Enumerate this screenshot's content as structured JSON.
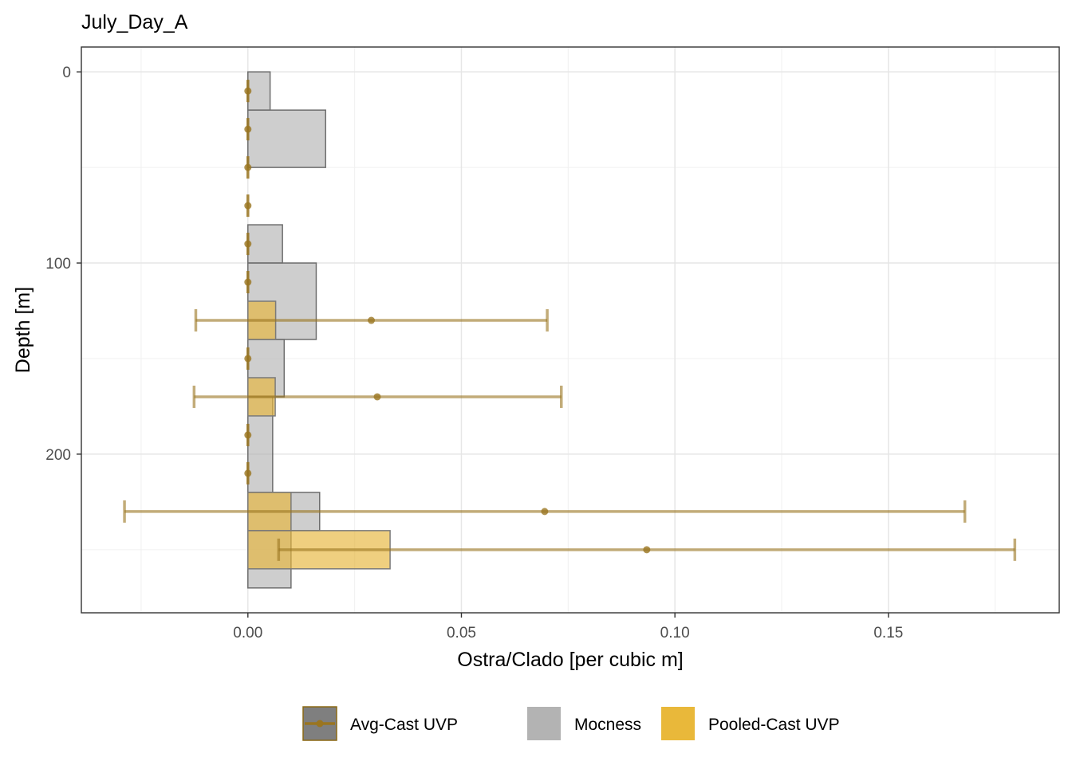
{
  "chart_data": {
    "type": "bar",
    "title": "July_Day_A",
    "xlabel": "Ostra/Clado [per cubic m]",
    "ylabel": "Depth [m]",
    "xlim": [
      -0.039,
      0.19
    ],
    "ylim": [
      -13,
      283
    ],
    "y_reversed": true,
    "grid": true,
    "x_ticks": [
      0.0,
      0.05,
      0.1,
      0.15
    ],
    "x_tick_labels": [
      "0.00",
      "0.05",
      "0.10",
      "0.15"
    ],
    "y_ticks": [
      0,
      100,
      200
    ],
    "y_tick_labels": [
      "0",
      "100",
      "200"
    ],
    "legend_position": "bottom",
    "series": [
      {
        "name": "Mocness",
        "kind": "bar",
        "color": "#b3b3b3",
        "bars": [
          {
            "depth_min": 0,
            "depth_max": 20,
            "value": 0.0052
          },
          {
            "depth_min": 20,
            "depth_max": 50,
            "value": 0.0182
          },
          {
            "depth_min": 80,
            "depth_max": 100,
            "value": 0.0081
          },
          {
            "depth_min": 100,
            "depth_max": 140,
            "value": 0.016
          },
          {
            "depth_min": 140,
            "depth_max": 170,
            "value": 0.0085
          },
          {
            "depth_min": 170,
            "depth_max": 220,
            "value": 0.0058
          },
          {
            "depth_min": 220,
            "depth_max": 240,
            "value": 0.0168
          },
          {
            "depth_min": 240,
            "depth_max": 270,
            "value": 0.0101
          }
        ]
      },
      {
        "name": "Pooled-Cast UVP",
        "kind": "bar",
        "color": "#e6b63a",
        "bars": [
          {
            "depth_min": 120,
            "depth_max": 140,
            "value": 0.0065
          },
          {
            "depth_min": 160,
            "depth_max": 180,
            "value": 0.0064
          },
          {
            "depth_min": 220,
            "depth_max": 240,
            "value": 0.0101
          },
          {
            "depth_min": 240,
            "depth_max": 260,
            "value": 0.0333
          }
        ]
      },
      {
        "name": "Avg-Cast UVP",
        "kind": "point-errorbar",
        "color": "#9a7520",
        "points": [
          {
            "depth": 10,
            "value": 0.0,
            "lo": 0.0,
            "hi": 0.0
          },
          {
            "depth": 30,
            "value": 0.0,
            "lo": 0.0,
            "hi": 0.0
          },
          {
            "depth": 50,
            "value": 0.0,
            "lo": 0.0,
            "hi": 0.0
          },
          {
            "depth": 70,
            "value": 0.0,
            "lo": 0.0,
            "hi": 0.0
          },
          {
            "depth": 90,
            "value": 0.0,
            "lo": 0.0,
            "hi": 0.0
          },
          {
            "depth": 110,
            "value": 0.0,
            "lo": 0.0,
            "hi": 0.0
          },
          {
            "depth": 130,
            "value": 0.0289,
            "lo": -0.0122,
            "hi": 0.0701
          },
          {
            "depth": 150,
            "value": 0.0,
            "lo": 0.0,
            "hi": 0.0
          },
          {
            "depth": 170,
            "value": 0.0303,
            "lo": -0.0126,
            "hi": 0.0734
          },
          {
            "depth": 190,
            "value": 0.0,
            "lo": 0.0,
            "hi": 0.0
          },
          {
            "depth": 210,
            "value": 0.0,
            "lo": 0.0,
            "hi": 0.0
          },
          {
            "depth": 230,
            "value": 0.0695,
            "lo": -0.0289,
            "hi": 0.1679
          },
          {
            "depth": 250,
            "value": 0.0934,
            "lo": 0.0072,
            "hi": 0.1796
          }
        ]
      }
    ]
  },
  "legend": {
    "items": [
      {
        "key": "avg",
        "label": "Avg-Cast UVP",
        "color": "#7f7f7f",
        "border": "#8b6914"
      },
      {
        "key": "mocness",
        "label": "Mocness",
        "color": "#b3b3b3"
      },
      {
        "key": "pooled",
        "label": "Pooled-Cast UVP",
        "color": "#e9b83a"
      }
    ]
  }
}
